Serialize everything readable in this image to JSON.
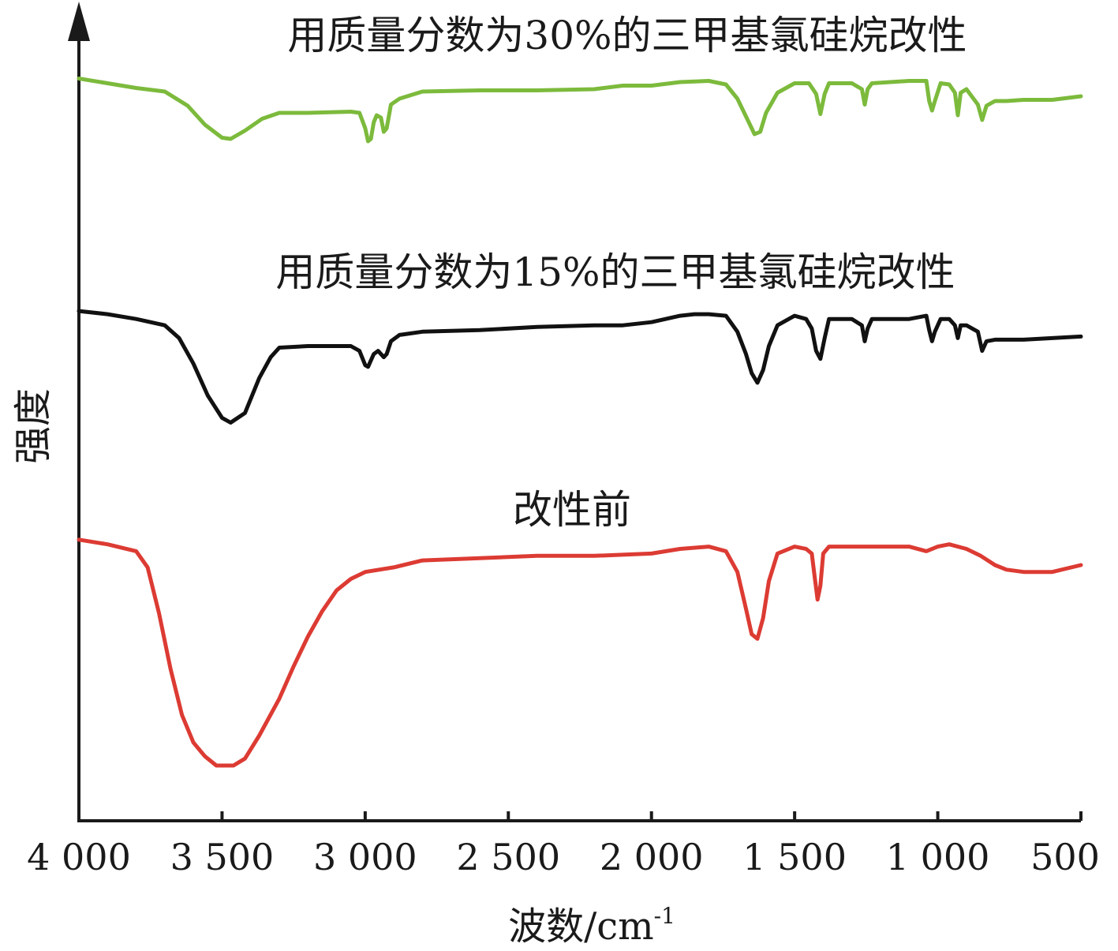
{
  "chart_data": {
    "type": "line",
    "title": "",
    "xlabel": "波数/cm",
    "xlabel_superscript": "-1",
    "ylabel": "强度",
    "xlim": [
      4000,
      500
    ],
    "x_reversed": true,
    "y_ticks_shown": false,
    "grid": false,
    "x_ticks": [
      {
        "value": 4000,
        "label": "4 000"
      },
      {
        "value": 3500,
        "label": "3 500"
      },
      {
        "value": 3000,
        "label": "3 000"
      },
      {
        "value": 2500,
        "label": "2 500"
      },
      {
        "value": 2000,
        "label": "2 000"
      },
      {
        "value": 1500,
        "label": "1 500"
      },
      {
        "value": 1000,
        "label": "1 000"
      },
      {
        "value": 500,
        "label": "500"
      }
    ],
    "series": [
      {
        "name": "用质量分数为30%的三甲基氯硅烷改性",
        "color": "#7cba3c",
        "points": [
          [
            4000,
            0.97
          ],
          [
            3900,
            0.93
          ],
          [
            3800,
            0.89
          ],
          [
            3700,
            0.86
          ],
          [
            3620,
            0.74
          ],
          [
            3560,
            0.58
          ],
          [
            3500,
            0.47
          ],
          [
            3470,
            0.46
          ],
          [
            3420,
            0.53
          ],
          [
            3360,
            0.63
          ],
          [
            3300,
            0.68
          ],
          [
            3200,
            0.68
          ],
          [
            3050,
            0.69
          ],
          [
            3020,
            0.68
          ],
          [
            3000,
            0.55
          ],
          [
            2990,
            0.44
          ],
          [
            2980,
            0.46
          ],
          [
            2970,
            0.6
          ],
          [
            2960,
            0.66
          ],
          [
            2945,
            0.64
          ],
          [
            2935,
            0.52
          ],
          [
            2925,
            0.55
          ],
          [
            2910,
            0.75
          ],
          [
            2880,
            0.8
          ],
          [
            2800,
            0.86
          ],
          [
            2600,
            0.87
          ],
          [
            2400,
            0.87
          ],
          [
            2200,
            0.88
          ],
          [
            2100,
            0.91
          ],
          [
            2000,
            0.91
          ],
          [
            1900,
            0.94
          ],
          [
            1800,
            0.95
          ],
          [
            1740,
            0.92
          ],
          [
            1700,
            0.8
          ],
          [
            1660,
            0.6
          ],
          [
            1640,
            0.5
          ],
          [
            1620,
            0.52
          ],
          [
            1600,
            0.68
          ],
          [
            1560,
            0.85
          ],
          [
            1500,
            0.93
          ],
          [
            1450,
            0.93
          ],
          [
            1425,
            0.84
          ],
          [
            1410,
            0.67
          ],
          [
            1395,
            0.84
          ],
          [
            1380,
            0.93
          ],
          [
            1300,
            0.93
          ],
          [
            1265,
            0.88
          ],
          [
            1255,
            0.75
          ],
          [
            1245,
            0.88
          ],
          [
            1230,
            0.93
          ],
          [
            1100,
            0.95
          ],
          [
            1040,
            0.95
          ],
          [
            1030,
            0.78
          ],
          [
            1020,
            0.7
          ],
          [
            1010,
            0.78
          ],
          [
            990,
            0.93
          ],
          [
            960,
            0.92
          ],
          [
            940,
            0.85
          ],
          [
            930,
            0.66
          ],
          [
            920,
            0.85
          ],
          [
            900,
            0.88
          ],
          [
            860,
            0.75
          ],
          [
            845,
            0.62
          ],
          [
            830,
            0.74
          ],
          [
            800,
            0.78
          ],
          [
            760,
            0.78
          ],
          [
            700,
            0.79
          ],
          [
            600,
            0.79
          ],
          [
            500,
            0.82
          ]
        ]
      },
      {
        "name": "用质量分数为15%的三甲基氯硅烷改性",
        "color": "#111111",
        "points": [
          [
            4000,
            0.97
          ],
          [
            3900,
            0.95
          ],
          [
            3800,
            0.92
          ],
          [
            3700,
            0.88
          ],
          [
            3650,
            0.8
          ],
          [
            3600,
            0.64
          ],
          [
            3550,
            0.44
          ],
          [
            3500,
            0.3
          ],
          [
            3470,
            0.27
          ],
          [
            3420,
            0.33
          ],
          [
            3370,
            0.55
          ],
          [
            3330,
            0.68
          ],
          [
            3300,
            0.74
          ],
          [
            3200,
            0.75
          ],
          [
            3050,
            0.75
          ],
          [
            3020,
            0.72
          ],
          [
            3000,
            0.63
          ],
          [
            2990,
            0.62
          ],
          [
            2970,
            0.7
          ],
          [
            2955,
            0.72
          ],
          [
            2945,
            0.7
          ],
          [
            2935,
            0.68
          ],
          [
            2925,
            0.7
          ],
          [
            2910,
            0.78
          ],
          [
            2880,
            0.82
          ],
          [
            2800,
            0.84
          ],
          [
            2600,
            0.85
          ],
          [
            2400,
            0.87
          ],
          [
            2200,
            0.88
          ],
          [
            2100,
            0.88
          ],
          [
            2000,
            0.9
          ],
          [
            1900,
            0.94
          ],
          [
            1850,
            0.95
          ],
          [
            1800,
            0.95
          ],
          [
            1740,
            0.94
          ],
          [
            1700,
            0.84
          ],
          [
            1670,
            0.7
          ],
          [
            1650,
            0.58
          ],
          [
            1630,
            0.52
          ],
          [
            1610,
            0.6
          ],
          [
            1590,
            0.75
          ],
          [
            1560,
            0.88
          ],
          [
            1500,
            0.94
          ],
          [
            1460,
            0.92
          ],
          [
            1440,
            0.86
          ],
          [
            1425,
            0.72
          ],
          [
            1410,
            0.67
          ],
          [
            1395,
            0.8
          ],
          [
            1380,
            0.92
          ],
          [
            1300,
            0.92
          ],
          [
            1265,
            0.88
          ],
          [
            1255,
            0.78
          ],
          [
            1245,
            0.86
          ],
          [
            1230,
            0.92
          ],
          [
            1100,
            0.92
          ],
          [
            1040,
            0.94
          ],
          [
            1030,
            0.85
          ],
          [
            1020,
            0.78
          ],
          [
            1010,
            0.84
          ],
          [
            990,
            0.92
          ],
          [
            960,
            0.92
          ],
          [
            940,
            0.88
          ],
          [
            930,
            0.8
          ],
          [
            920,
            0.88
          ],
          [
            900,
            0.88
          ],
          [
            860,
            0.84
          ],
          [
            845,
            0.72
          ],
          [
            830,
            0.78
          ],
          [
            800,
            0.79
          ],
          [
            760,
            0.79
          ],
          [
            700,
            0.79
          ],
          [
            600,
            0.8
          ],
          [
            500,
            0.81
          ]
        ]
      },
      {
        "name": "改性前",
        "color": "#dc3b33",
        "points": [
          [
            4000,
            0.98
          ],
          [
            3900,
            0.96
          ],
          [
            3800,
            0.93
          ],
          [
            3760,
            0.86
          ],
          [
            3720,
            0.66
          ],
          [
            3680,
            0.42
          ],
          [
            3640,
            0.22
          ],
          [
            3600,
            0.1
          ],
          [
            3560,
            0.04
          ],
          [
            3520,
            0.0
          ],
          [
            3460,
            0.0
          ],
          [
            3420,
            0.03
          ],
          [
            3370,
            0.13
          ],
          [
            3300,
            0.29
          ],
          [
            3250,
            0.43
          ],
          [
            3200,
            0.56
          ],
          [
            3150,
            0.67
          ],
          [
            3100,
            0.76
          ],
          [
            3050,
            0.81
          ],
          [
            3000,
            0.84
          ],
          [
            2900,
            0.86
          ],
          [
            2800,
            0.89
          ],
          [
            2600,
            0.9
          ],
          [
            2400,
            0.91
          ],
          [
            2200,
            0.91
          ],
          [
            2000,
            0.92
          ],
          [
            1900,
            0.94
          ],
          [
            1800,
            0.95
          ],
          [
            1740,
            0.93
          ],
          [
            1700,
            0.84
          ],
          [
            1670,
            0.68
          ],
          [
            1650,
            0.57
          ],
          [
            1630,
            0.55
          ],
          [
            1610,
            0.64
          ],
          [
            1590,
            0.8
          ],
          [
            1560,
            0.92
          ],
          [
            1500,
            0.95
          ],
          [
            1460,
            0.94
          ],
          [
            1440,
            0.92
          ],
          [
            1430,
            0.82
          ],
          [
            1420,
            0.72
          ],
          [
            1410,
            0.78
          ],
          [
            1400,
            0.92
          ],
          [
            1380,
            0.95
          ],
          [
            1300,
            0.95
          ],
          [
            1200,
            0.95
          ],
          [
            1100,
            0.95
          ],
          [
            1040,
            0.93
          ],
          [
            1000,
            0.95
          ],
          [
            960,
            0.96
          ],
          [
            900,
            0.94
          ],
          [
            850,
            0.91
          ],
          [
            800,
            0.87
          ],
          [
            760,
            0.85
          ],
          [
            700,
            0.84
          ],
          [
            600,
            0.84
          ],
          [
            500,
            0.87
          ]
        ]
      }
    ]
  },
  "colors": {
    "axis": "#1a1a1a"
  }
}
